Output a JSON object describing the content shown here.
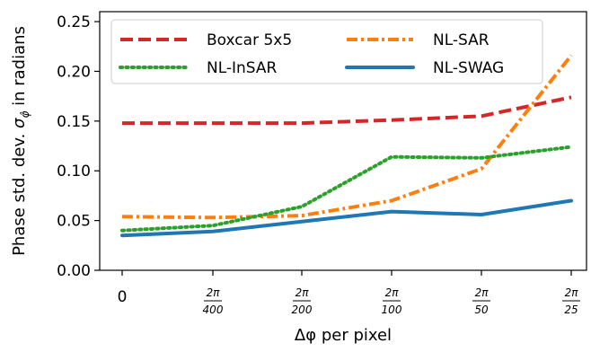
{
  "chart_data": {
    "type": "line",
    "xlabel": "Δφ per pixel",
    "ylabel": "Phase std. dev. σ_φ̂ in radians",
    "ylabel_main": "Phase std. dev. ",
    "ylabel_sigma": "σ",
    "ylabel_sub": "φ̂",
    "ylabel_tail": " in radians",
    "x_categories": [
      {
        "plain": "0"
      },
      {
        "num": "2π",
        "den": "400"
      },
      {
        "num": "2π",
        "den": "200"
      },
      {
        "num": "2π",
        "den": "100"
      },
      {
        "num": "2π",
        "den": "50"
      },
      {
        "num": "2π",
        "den": "25"
      }
    ],
    "ylim": [
      0,
      0.26
    ],
    "yticks": [
      "0.00",
      "0.05",
      "0.10",
      "0.15",
      "0.20",
      "0.25"
    ],
    "legend_position": "top",
    "series": [
      {
        "name": "Boxcar 5x5",
        "color": "#d62728",
        "dash": "dashed",
        "values": [
          0.148,
          0.148,
          0.148,
          0.151,
          0.155,
          0.174
        ]
      },
      {
        "name": "NL-SAR",
        "color": "#ff7f0e",
        "dash": "dashdot",
        "values": [
          0.054,
          0.053,
          0.055,
          0.07,
          0.102,
          0.216
        ]
      },
      {
        "name": "NL-InSAR",
        "color": "#2ca02c",
        "dash": "dotted",
        "values": [
          0.04,
          0.045,
          0.064,
          0.114,
          0.113,
          0.124
        ]
      },
      {
        "name": "NL-SWAG",
        "color": "#1f77b4",
        "dash": "solid",
        "values": [
          0.035,
          0.039,
          0.049,
          0.059,
          0.056,
          0.07
        ]
      }
    ]
  }
}
